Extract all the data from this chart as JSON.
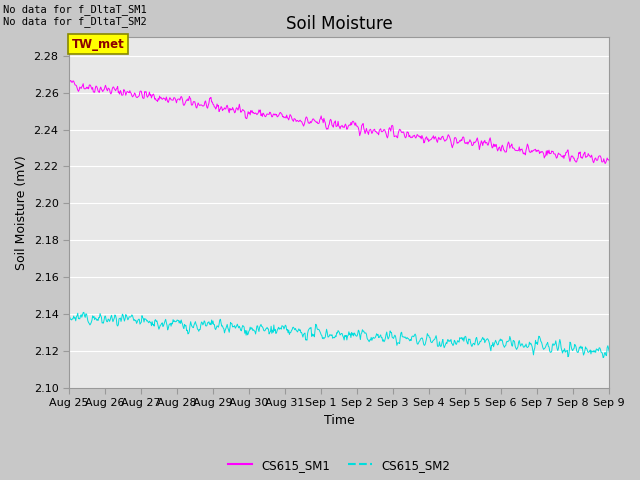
{
  "title": "Soil Moisture",
  "ylabel": "Soil Moisture (mV)",
  "xlabel": "Time",
  "ylim": [
    2.1,
    2.29
  ],
  "yticks": [
    2.1,
    2.12,
    2.14,
    2.16,
    2.18,
    2.2,
    2.22,
    2.24,
    2.26,
    2.28
  ],
  "no_data_text1": "No data for f_DltaT_SM1",
  "no_data_text2": "No data for f_DltaT_SM2",
  "tw_met_label": "TW_met",
  "legend_labels": [
    "CS615_SM1",
    "CS615_SM2"
  ],
  "line1_color": "#ff00ff",
  "line2_color": "#00dddd",
  "fig_bg_color": "#c8c8c8",
  "plot_bg_color": "#e8e8e8",
  "n_points": 800,
  "x_start": 0,
  "x_end": 15,
  "xtick_labels": [
    "Aug 25",
    "Aug 26",
    "Aug 27",
    "Aug 28",
    "Aug 29",
    "Aug 30",
    "Aug 31",
    "Sep 1",
    "Sep 2",
    "Sep 3",
    "Sep 4",
    "Sep 5",
    "Sep 6",
    "Sep 7",
    "Sep 8",
    "Sep 9"
  ],
  "xtick_positions": [
    0,
    1,
    2,
    3,
    4,
    5,
    6,
    7,
    8,
    9,
    10,
    11,
    12,
    13,
    14,
    15
  ],
  "grid_color": "#ffffff",
  "title_fontsize": 12,
  "label_fontsize": 9,
  "tick_fontsize": 8
}
